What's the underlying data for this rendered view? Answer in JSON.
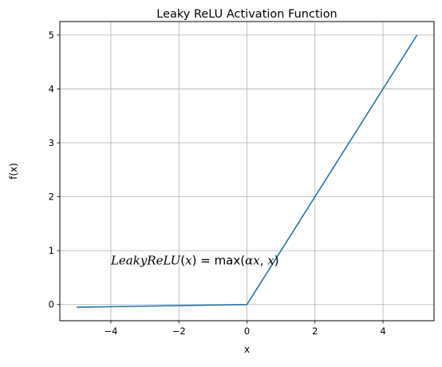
{
  "chart_data": {
    "type": "line",
    "title": "Leaky ReLU Activation Function",
    "xlabel": "x",
    "ylabel": "f(x)",
    "xlim": [
      -5.5,
      5.5
    ],
    "ylim": [
      -0.3,
      5.25
    ],
    "xticks": [
      -4,
      -2,
      0,
      2,
      4
    ],
    "yticks": [
      0,
      1,
      2,
      3,
      4,
      5
    ],
    "xtick_labels": [
      "−4",
      "−2",
      "0",
      "2",
      "4"
    ],
    "ytick_labels": [
      "0",
      "1",
      "2",
      "3",
      "4",
      "5"
    ],
    "grid": true,
    "series": [
      {
        "color": "#1f77b4",
        "x": [
          -5,
          0,
          5
        ],
        "y": [
          -0.05,
          0,
          5
        ]
      }
    ],
    "annotation": {
      "func_name": "LeakyReLU",
      "open_paren": "(",
      "arg": "x",
      "close_paren_eq": ") = ",
      "max": "max",
      "args_open": "(",
      "alpha_x": "αx",
      "comma": ", ",
      "x2": "x",
      "args_close": ")",
      "position_data": [
        -4,
        0.82
      ]
    }
  }
}
